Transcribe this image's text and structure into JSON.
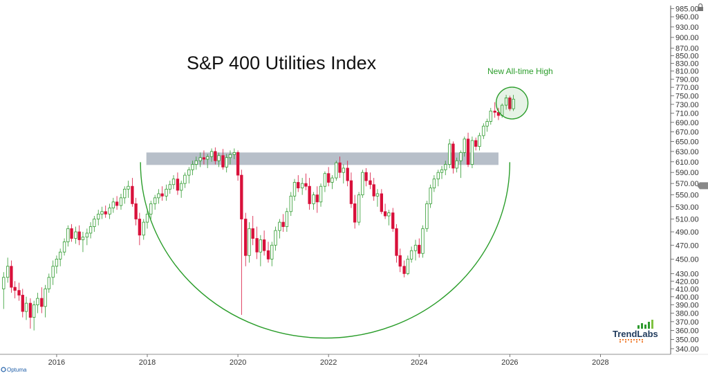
{
  "chart_data": {
    "type": "candlestick",
    "title": "S&P 400 Utilities Index",
    "annotation": "New All-time High",
    "x_ticks": [
      "2016",
      "2018",
      "2020",
      "2022",
      "2024",
      "2026",
      "2028"
    ],
    "y_ticks": [
      "340.00",
      "350.00",
      "360.00",
      "370.00",
      "380.00",
      "390.00",
      "400.00",
      "410.00",
      "420.00",
      "430.00",
      "450.00",
      "470.00",
      "490.00",
      "510.00",
      "530.00",
      "550.00",
      "570.00",
      "590.00",
      "610.00",
      "630.00",
      "650.00",
      "670.00",
      "690.00",
      "710.00",
      "730.00",
      "750.00",
      "770.00",
      "790.00",
      "810.00",
      "830.00",
      "850.00",
      "870.00",
      "900.00",
      "930.00",
      "960.00",
      "985.00"
    ],
    "y_scale": "log",
    "xlim": [
      2014.75,
      2029.55
    ],
    "ylim": [
      337,
      990
    ],
    "grid": false,
    "resistance_zone": [
      604,
      628
    ],
    "rounding_base_low": 350,
    "current_price": 566,
    "up_color": "#2e9a2e",
    "down_color": "#d8103a",
    "zone_color": "#b7bfc9",
    "arc_color": "#2a9d2a",
    "candles": [
      {
        "t": 2014.83,
        "o": 410,
        "h": 432,
        "l": 385,
        "c": 425
      },
      {
        "t": 2014.92,
        "o": 425,
        "h": 452,
        "l": 418,
        "c": 440
      },
      {
        "t": 2015.0,
        "o": 440,
        "h": 448,
        "l": 405,
        "c": 412
      },
      {
        "t": 2015.08,
        "o": 412,
        "h": 420,
        "l": 398,
        "c": 408
      },
      {
        "t": 2015.17,
        "o": 408,
        "h": 418,
        "l": 395,
        "c": 402
      },
      {
        "t": 2015.25,
        "o": 402,
        "h": 410,
        "l": 375,
        "c": 382
      },
      {
        "t": 2015.33,
        "o": 382,
        "h": 400,
        "l": 372,
        "c": 392
      },
      {
        "t": 2015.42,
        "o": 392,
        "h": 398,
        "l": 362,
        "c": 375
      },
      {
        "t": 2015.5,
        "o": 375,
        "h": 395,
        "l": 360,
        "c": 390
      },
      {
        "t": 2015.58,
        "o": 390,
        "h": 405,
        "l": 380,
        "c": 398
      },
      {
        "t": 2015.67,
        "o": 398,
        "h": 412,
        "l": 380,
        "c": 388
      },
      {
        "t": 2015.75,
        "o": 388,
        "h": 415,
        "l": 375,
        "c": 410
      },
      {
        "t": 2015.83,
        "o": 410,
        "h": 430,
        "l": 405,
        "c": 425
      },
      {
        "t": 2015.92,
        "o": 425,
        "h": 448,
        "l": 415,
        "c": 440
      },
      {
        "t": 2016.0,
        "o": 440,
        "h": 455,
        "l": 430,
        "c": 450
      },
      {
        "t": 2016.08,
        "o": 450,
        "h": 465,
        "l": 440,
        "c": 460
      },
      {
        "t": 2016.17,
        "o": 460,
        "h": 480,
        "l": 455,
        "c": 475
      },
      {
        "t": 2016.25,
        "o": 475,
        "h": 500,
        "l": 468,
        "c": 495
      },
      {
        "t": 2016.33,
        "o": 495,
        "h": 502,
        "l": 475,
        "c": 480
      },
      {
        "t": 2016.42,
        "o": 480,
        "h": 498,
        "l": 472,
        "c": 490
      },
      {
        "t": 2016.5,
        "o": 490,
        "h": 500,
        "l": 470,
        "c": 478
      },
      {
        "t": 2016.58,
        "o": 478,
        "h": 490,
        "l": 460,
        "c": 482
      },
      {
        "t": 2016.67,
        "o": 482,
        "h": 495,
        "l": 470,
        "c": 488
      },
      {
        "t": 2016.75,
        "o": 488,
        "h": 505,
        "l": 480,
        "c": 498
      },
      {
        "t": 2016.83,
        "o": 498,
        "h": 515,
        "l": 490,
        "c": 510
      },
      {
        "t": 2016.92,
        "o": 510,
        "h": 525,
        "l": 500,
        "c": 518
      },
      {
        "t": 2017.0,
        "o": 518,
        "h": 530,
        "l": 510,
        "c": 522
      },
      {
        "t": 2017.08,
        "o": 522,
        "h": 532,
        "l": 512,
        "c": 518
      },
      {
        "t": 2017.17,
        "o": 518,
        "h": 535,
        "l": 510,
        "c": 528
      },
      {
        "t": 2017.25,
        "o": 528,
        "h": 545,
        "l": 520,
        "c": 538
      },
      {
        "t": 2017.33,
        "o": 538,
        "h": 548,
        "l": 525,
        "c": 532
      },
      {
        "t": 2017.42,
        "o": 532,
        "h": 552,
        "l": 525,
        "c": 545
      },
      {
        "t": 2017.5,
        "o": 545,
        "h": 565,
        "l": 535,
        "c": 560
      },
      {
        "t": 2017.58,
        "o": 560,
        "h": 575,
        "l": 545,
        "c": 565
      },
      {
        "t": 2017.67,
        "o": 565,
        "h": 580,
        "l": 530,
        "c": 535
      },
      {
        "t": 2017.75,
        "o": 535,
        "h": 545,
        "l": 500,
        "c": 510
      },
      {
        "t": 2017.83,
        "o": 510,
        "h": 520,
        "l": 470,
        "c": 485
      },
      {
        "t": 2017.92,
        "o": 485,
        "h": 510,
        "l": 478,
        "c": 505
      },
      {
        "t": 2018.0,
        "o": 505,
        "h": 525,
        "l": 495,
        "c": 518
      },
      {
        "t": 2018.08,
        "o": 518,
        "h": 540,
        "l": 510,
        "c": 535
      },
      {
        "t": 2018.17,
        "o": 535,
        "h": 550,
        "l": 525,
        "c": 545
      },
      {
        "t": 2018.25,
        "o": 545,
        "h": 560,
        "l": 535,
        "c": 552
      },
      {
        "t": 2018.33,
        "o": 552,
        "h": 565,
        "l": 540,
        "c": 548
      },
      {
        "t": 2018.42,
        "o": 548,
        "h": 568,
        "l": 540,
        "c": 560
      },
      {
        "t": 2018.5,
        "o": 560,
        "h": 575,
        "l": 552,
        "c": 568
      },
      {
        "t": 2018.58,
        "o": 568,
        "h": 585,
        "l": 560,
        "c": 578
      },
      {
        "t": 2018.67,
        "o": 578,
        "h": 590,
        "l": 550,
        "c": 558
      },
      {
        "t": 2018.75,
        "o": 558,
        "h": 575,
        "l": 545,
        "c": 570
      },
      {
        "t": 2018.83,
        "o": 570,
        "h": 590,
        "l": 562,
        "c": 585
      },
      {
        "t": 2018.92,
        "o": 585,
        "h": 600,
        "l": 570,
        "c": 595
      },
      {
        "t": 2019.0,
        "o": 595,
        "h": 612,
        "l": 585,
        "c": 605
      },
      {
        "t": 2019.08,
        "o": 605,
        "h": 620,
        "l": 595,
        "c": 612
      },
      {
        "t": 2019.17,
        "o": 612,
        "h": 628,
        "l": 600,
        "c": 618
      },
      {
        "t": 2019.25,
        "o": 618,
        "h": 632,
        "l": 605,
        "c": 615
      },
      {
        "t": 2019.33,
        "o": 615,
        "h": 625,
        "l": 598,
        "c": 620
      },
      {
        "t": 2019.42,
        "o": 620,
        "h": 636,
        "l": 610,
        "c": 630
      },
      {
        "t": 2019.5,
        "o": 630,
        "h": 638,
        "l": 605,
        "c": 612
      },
      {
        "t": 2019.58,
        "o": 612,
        "h": 628,
        "l": 600,
        "c": 622
      },
      {
        "t": 2019.67,
        "o": 622,
        "h": 635,
        "l": 595,
        "c": 600
      },
      {
        "t": 2019.75,
        "o": 600,
        "h": 625,
        "l": 590,
        "c": 618
      },
      {
        "t": 2019.83,
        "o": 618,
        "h": 632,
        "l": 605,
        "c": 624
      },
      {
        "t": 2019.92,
        "o": 624,
        "h": 636,
        "l": 615,
        "c": 628
      },
      {
        "t": 2020.0,
        "o": 628,
        "h": 632,
        "l": 575,
        "c": 585
      },
      {
        "t": 2020.08,
        "o": 585,
        "h": 595,
        "l": 378,
        "c": 510
      },
      {
        "t": 2020.17,
        "o": 510,
        "h": 520,
        "l": 440,
        "c": 455
      },
      {
        "t": 2020.25,
        "o": 455,
        "h": 505,
        "l": 445,
        "c": 495
      },
      {
        "t": 2020.33,
        "o": 495,
        "h": 515,
        "l": 470,
        "c": 480
      },
      {
        "t": 2020.42,
        "o": 480,
        "h": 498,
        "l": 450,
        "c": 460
      },
      {
        "t": 2020.5,
        "o": 460,
        "h": 485,
        "l": 440,
        "c": 478
      },
      {
        "t": 2020.58,
        "o": 478,
        "h": 492,
        "l": 455,
        "c": 462
      },
      {
        "t": 2020.67,
        "o": 462,
        "h": 475,
        "l": 445,
        "c": 450
      },
      {
        "t": 2020.75,
        "o": 450,
        "h": 475,
        "l": 440,
        "c": 470
      },
      {
        "t": 2020.83,
        "o": 470,
        "h": 498,
        "l": 462,
        "c": 492
      },
      {
        "t": 2020.92,
        "o": 492,
        "h": 510,
        "l": 480,
        "c": 505
      },
      {
        "t": 2021.0,
        "o": 505,
        "h": 518,
        "l": 490,
        "c": 498
      },
      {
        "t": 2021.08,
        "o": 498,
        "h": 528,
        "l": 490,
        "c": 522
      },
      {
        "t": 2021.17,
        "o": 522,
        "h": 555,
        "l": 515,
        "c": 548
      },
      {
        "t": 2021.25,
        "o": 548,
        "h": 578,
        "l": 540,
        "c": 572
      },
      {
        "t": 2021.33,
        "o": 572,
        "h": 585,
        "l": 555,
        "c": 562
      },
      {
        "t": 2021.42,
        "o": 562,
        "h": 580,
        "l": 550,
        "c": 570
      },
      {
        "t": 2021.5,
        "o": 570,
        "h": 588,
        "l": 558,
        "c": 565
      },
      {
        "t": 2021.58,
        "o": 565,
        "h": 580,
        "l": 525,
        "c": 535
      },
      {
        "t": 2021.67,
        "o": 535,
        "h": 555,
        "l": 525,
        "c": 550
      },
      {
        "t": 2021.75,
        "o": 550,
        "h": 565,
        "l": 520,
        "c": 538
      },
      {
        "t": 2021.83,
        "o": 538,
        "h": 570,
        "l": 530,
        "c": 565
      },
      {
        "t": 2021.92,
        "o": 565,
        "h": 592,
        "l": 555,
        "c": 588
      },
      {
        "t": 2022.0,
        "o": 588,
        "h": 600,
        "l": 565,
        "c": 572
      },
      {
        "t": 2022.08,
        "o": 572,
        "h": 585,
        "l": 560,
        "c": 580
      },
      {
        "t": 2022.17,
        "o": 580,
        "h": 612,
        "l": 575,
        "c": 608
      },
      {
        "t": 2022.25,
        "o": 608,
        "h": 620,
        "l": 580,
        "c": 590
      },
      {
        "t": 2022.33,
        "o": 590,
        "h": 605,
        "l": 570,
        "c": 598
      },
      {
        "t": 2022.42,
        "o": 598,
        "h": 612,
        "l": 565,
        "c": 575
      },
      {
        "t": 2022.5,
        "o": 575,
        "h": 590,
        "l": 528,
        "c": 535
      },
      {
        "t": 2022.58,
        "o": 535,
        "h": 550,
        "l": 495,
        "c": 505
      },
      {
        "t": 2022.67,
        "o": 505,
        "h": 555,
        "l": 500,
        "c": 550
      },
      {
        "t": 2022.75,
        "o": 550,
        "h": 595,
        "l": 545,
        "c": 590
      },
      {
        "t": 2022.83,
        "o": 590,
        "h": 598,
        "l": 565,
        "c": 575
      },
      {
        "t": 2022.92,
        "o": 575,
        "h": 590,
        "l": 560,
        "c": 568
      },
      {
        "t": 2023.0,
        "o": 568,
        "h": 580,
        "l": 540,
        "c": 548
      },
      {
        "t": 2023.08,
        "o": 548,
        "h": 560,
        "l": 530,
        "c": 552
      },
      {
        "t": 2023.17,
        "o": 552,
        "h": 560,
        "l": 518,
        "c": 522
      },
      {
        "t": 2023.25,
        "o": 522,
        "h": 535,
        "l": 510,
        "c": 515
      },
      {
        "t": 2023.33,
        "o": 515,
        "h": 525,
        "l": 500,
        "c": 520
      },
      {
        "t": 2023.42,
        "o": 520,
        "h": 528,
        "l": 490,
        "c": 495
      },
      {
        "t": 2023.5,
        "o": 495,
        "h": 502,
        "l": 445,
        "c": 455
      },
      {
        "t": 2023.58,
        "o": 455,
        "h": 465,
        "l": 432,
        "c": 440
      },
      {
        "t": 2023.67,
        "o": 440,
        "h": 448,
        "l": 425,
        "c": 430
      },
      {
        "t": 2023.75,
        "o": 430,
        "h": 455,
        "l": 428,
        "c": 450
      },
      {
        "t": 2023.83,
        "o": 450,
        "h": 468,
        "l": 445,
        "c": 462
      },
      {
        "t": 2023.92,
        "o": 462,
        "h": 478,
        "l": 448,
        "c": 470
      },
      {
        "t": 2024.0,
        "o": 470,
        "h": 480,
        "l": 452,
        "c": 458
      },
      {
        "t": 2024.08,
        "o": 458,
        "h": 500,
        "l": 452,
        "c": 495
      },
      {
        "t": 2024.17,
        "o": 495,
        "h": 540,
        "l": 490,
        "c": 535
      },
      {
        "t": 2024.25,
        "o": 535,
        "h": 568,
        "l": 528,
        "c": 562
      },
      {
        "t": 2024.33,
        "o": 562,
        "h": 585,
        "l": 555,
        "c": 578
      },
      {
        "t": 2024.42,
        "o": 578,
        "h": 595,
        "l": 565,
        "c": 590
      },
      {
        "t": 2024.5,
        "o": 590,
        "h": 602,
        "l": 578,
        "c": 595
      },
      {
        "t": 2024.58,
        "o": 595,
        "h": 612,
        "l": 585,
        "c": 605
      },
      {
        "t": 2024.67,
        "o": 605,
        "h": 655,
        "l": 598,
        "c": 645
      },
      {
        "t": 2024.75,
        "o": 645,
        "h": 650,
        "l": 588,
        "c": 598
      },
      {
        "t": 2024.83,
        "o": 598,
        "h": 618,
        "l": 590,
        "c": 612
      },
      {
        "t": 2024.92,
        "o": 612,
        "h": 632,
        "l": 580,
        "c": 628
      },
      {
        "t": 2025.0,
        "o": 628,
        "h": 660,
        "l": 620,
        "c": 655
      },
      {
        "t": 2025.08,
        "o": 655,
        "h": 668,
        "l": 600,
        "c": 605
      },
      {
        "t": 2025.17,
        "o": 605,
        "h": 660,
        "l": 598,
        "c": 652
      },
      {
        "t": 2025.25,
        "o": 652,
        "h": 658,
        "l": 632,
        "c": 640
      },
      {
        "t": 2025.33,
        "o": 640,
        "h": 668,
        "l": 632,
        "c": 662
      },
      {
        "t": 2025.42,
        "o": 662,
        "h": 688,
        "l": 655,
        "c": 682
      },
      {
        "t": 2025.5,
        "o": 682,
        "h": 698,
        "l": 670,
        "c": 692
      },
      {
        "t": 2025.58,
        "o": 692,
        "h": 722,
        "l": 685,
        "c": 715
      },
      {
        "t": 2025.67,
        "o": 715,
        "h": 735,
        "l": 700,
        "c": 712
      },
      {
        "t": 2025.75,
        "o": 712,
        "h": 722,
        "l": 695,
        "c": 705
      },
      {
        "t": 2025.83,
        "o": 705,
        "h": 732,
        "l": 700,
        "c": 728
      },
      {
        "t": 2025.92,
        "o": 728,
        "h": 752,
        "l": 718,
        "c": 745
      },
      {
        "t": 2026.0,
        "o": 745,
        "h": 750,
        "l": 715,
        "c": 720
      },
      {
        "t": 2026.08,
        "o": 720,
        "h": 752,
        "l": 715,
        "c": 742
      }
    ]
  },
  "brand": {
    "name": "TrendLabs",
    "provider": "Optuma"
  }
}
